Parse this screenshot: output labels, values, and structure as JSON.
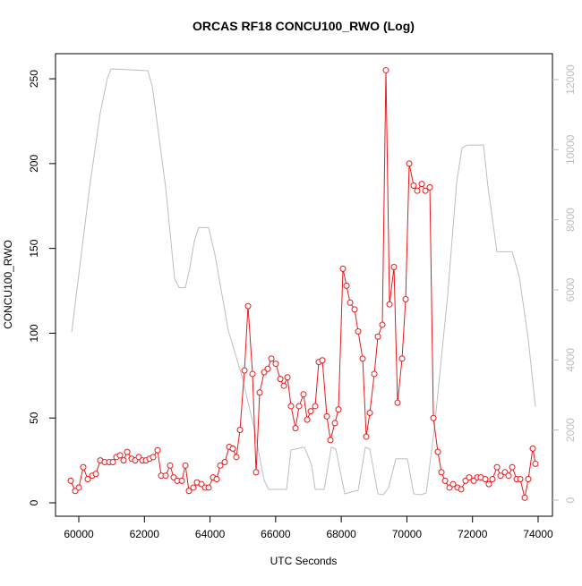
{
  "chart_data": {
    "type": "line",
    "title": "ORCAS RF18 CONCU100_RWO (Log)",
    "x_label": "UTC Seconds",
    "y_label": "CONCU100_RWO",
    "xlim": [
      59290,
      74437
    ],
    "xticks": [
      60000,
      62000,
      64000,
      66000,
      68000,
      70000,
      72000,
      74000
    ],
    "ylim": [
      -7.9,
      264.8
    ],
    "yticks": [
      0,
      50,
      100,
      150,
      200,
      250
    ],
    "y2lim": [
      -460,
      12741
    ],
    "y2ticks": [
      0,
      2000,
      4000,
      6000,
      8000,
      10000,
      12000
    ],
    "series": [
      {
        "color": "#bebebe",
        "axis": "y2",
        "markers": false,
        "x": [
          59782,
          60328,
          60655,
          60873,
          60983,
          62102,
          62238,
          62647,
          62920,
          63057,
          63248,
          63384,
          63521,
          63657,
          63957,
          64148,
          64558,
          64967,
          65322,
          65650,
          65786,
          66332,
          66468,
          66878,
          67096,
          67205,
          67478,
          67697,
          67833,
          68106,
          68297,
          68515,
          68734,
          68870,
          69116,
          69280,
          69443,
          69662,
          70017,
          70207,
          70426,
          70590,
          70835,
          71244,
          71517,
          71681,
          71845,
          72336,
          72473,
          72746,
          73210,
          73428,
          73701,
          73919
        ],
        "values": [
          4785,
          8930,
          11054,
          12052,
          12308,
          12257,
          11822,
          8930,
          6320,
          6064,
          6064,
          6627,
          7395,
          7779,
          7779,
          7011,
          4836,
          3557,
          2149,
          563,
          307,
          307,
          1433,
          1510,
          998,
          307,
          307,
          1510,
          1458,
          179,
          230,
          281,
          1510,
          1458,
          179,
          154,
          358,
          1177,
          1177,
          179,
          154,
          205,
          2021,
          5860,
          9058,
          10056,
          10133,
          10133,
          8930,
          7088,
          7088,
          6371,
          4580,
          2661
        ]
      },
      {
        "color": "#e8191c",
        "markers": true,
        "x": [
          59754,
          59890,
          60000,
          60136,
          60273,
          60409,
          60519,
          60655,
          60791,
          60928,
          61037,
          61146,
          61255,
          61364,
          61474,
          61610,
          61719,
          61828,
          61938,
          62047,
          62156,
          62265,
          62402,
          62511,
          62647,
          62784,
          62893,
          63002,
          63139,
          63248,
          63357,
          63493,
          63603,
          63739,
          63848,
          63957,
          64094,
          64203,
          64312,
          64449,
          64585,
          64694,
          64803,
          64913,
          65049,
          65158,
          65295,
          65404,
          65513,
          65650,
          65759,
          65868,
          66004,
          66141,
          66250,
          66359,
          66468,
          66605,
          66714,
          66850,
          66960,
          67069,
          67205,
          67314,
          67424,
          67560,
          67669,
          67806,
          67915,
          68051,
          68160,
          68270,
          68406,
          68515,
          68652,
          68761,
          68870,
          69007,
          69116,
          69252,
          69361,
          69471,
          69607,
          69716,
          69853,
          69962,
          70071,
          70207,
          70317,
          70453,
          70562,
          70699,
          70808,
          70944,
          71053,
          71163,
          71299,
          71408,
          71544,
          71654,
          71790,
          71900,
          72036,
          72145,
          72255,
          72391,
          72500,
          72609,
          72746,
          72855,
          72991,
          73100,
          73210,
          73346,
          73455,
          73592,
          73701,
          73837,
          73919
        ],
        "values": [
          13,
          7,
          9,
          21,
          14,
          16,
          17,
          25,
          24,
          24,
          24,
          27,
          28,
          25,
          30,
          26,
          25,
          27,
          25,
          25,
          26,
          27,
          31,
          16,
          16,
          22,
          15,
          13,
          13,
          22,
          7,
          9,
          12,
          11,
          9,
          9,
          15,
          14,
          22,
          24,
          33,
          32,
          27,
          43,
          78,
          116,
          76,
          18,
          65,
          77,
          79,
          85,
          82,
          73,
          69,
          74,
          57,
          44,
          57,
          64,
          49,
          54,
          57,
          83,
          84,
          51,
          37,
          47,
          55,
          138,
          128,
          118,
          114,
          101,
          85,
          39,
          53,
          76,
          98,
          105,
          255,
          117,
          139,
          59,
          85,
          120,
          200,
          187,
          184,
          188,
          184,
          186,
          50,
          30,
          18,
          13,
          9,
          11,
          9,
          8,
          13,
          15,
          13,
          15,
          15,
          14,
          11,
          14,
          21,
          16,
          18,
          16,
          21,
          14,
          14,
          3,
          14,
          32,
          23
        ]
      }
    ]
  }
}
